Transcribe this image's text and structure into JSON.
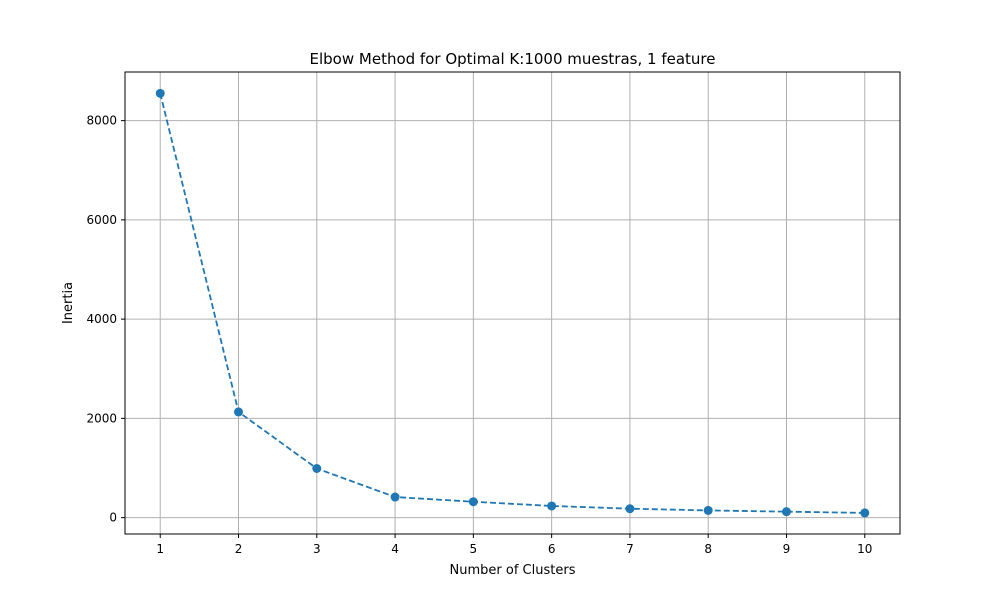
{
  "chart_data": {
    "type": "line",
    "title": "Elbow Method for Optimal K:1000 muestras, 1 feature",
    "xlabel": "Number of Clusters",
    "ylabel": "Inertia",
    "x": [
      1,
      2,
      3,
      4,
      5,
      6,
      7,
      8,
      9,
      10
    ],
    "series": [
      {
        "values": [
          8550,
          2130,
          990,
          415,
          320,
          235,
          180,
          145,
          120,
          95
        ],
        "color": "#1f77b4",
        "line_style": "dashed",
        "marker": "circle"
      }
    ],
    "xlim": [
      0.55,
      10.45
    ],
    "ylim": [
      -330,
      8980
    ],
    "xticks": [
      1,
      2,
      3,
      4,
      5,
      6,
      7,
      8,
      9,
      10
    ],
    "yticks": [
      0,
      2000,
      4000,
      6000,
      8000
    ],
    "grid": true,
    "legend": "none",
    "colors": {
      "grid": "#b0b0b0",
      "axes": "#000000"
    }
  }
}
